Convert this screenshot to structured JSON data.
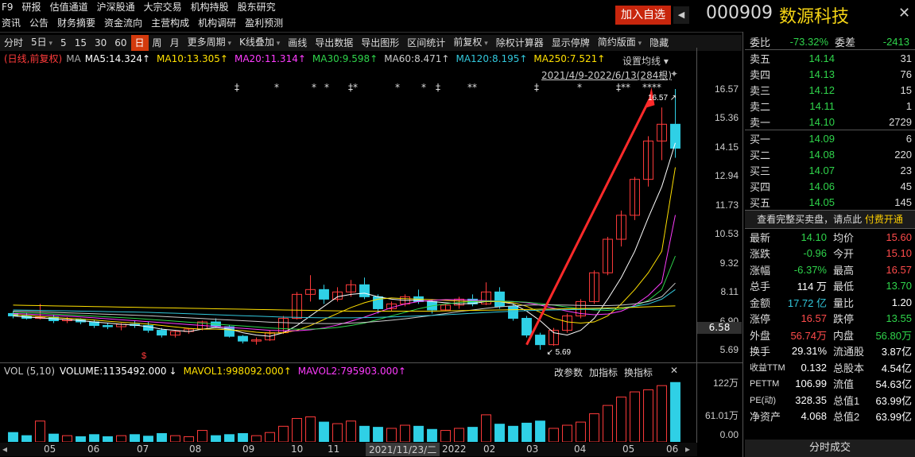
{
  "nav": {
    "row1": [
      "F9",
      "研报",
      "估值通道",
      "沪深股通",
      "大宗交易",
      "机构持股",
      "股东研究"
    ],
    "row2": [
      "资讯",
      "公告",
      "财务摘要",
      "资金流向",
      "主营构成",
      "机构调研",
      "盈利预测"
    ]
  },
  "header": {
    "add_fav": "加入自选",
    "code": "000909",
    "name": "数源科技",
    "colors": {
      "accent": "#c8260d",
      "name": "#f5d415"
    }
  },
  "toolbar": {
    "items": [
      {
        "label": "分时"
      },
      {
        "label": "5日",
        "dd": true
      },
      {
        "label": "5"
      },
      {
        "label": "15"
      },
      {
        "label": "30"
      },
      {
        "label": "60"
      },
      {
        "label": "日",
        "sel": true
      },
      {
        "label": "周"
      },
      {
        "label": "月"
      },
      {
        "label": "更多周期",
        "dd": true
      },
      {
        "label": "K线叠加",
        "dd": true
      },
      {
        "label": "画线"
      },
      {
        "label": "导出数据"
      },
      {
        "label": "导出图形"
      },
      {
        "label": "区间统计"
      },
      {
        "label": "前复权",
        "dd": true
      },
      {
        "label": "除权计算器"
      },
      {
        "label": "显示停牌"
      },
      {
        "label": "简约版面",
        "dd": true
      },
      {
        "label": "隐藏"
      }
    ]
  },
  "ma_legend": {
    "prefix": "(日线,前复权)",
    "ma": "MA",
    "items": [
      {
        "label": "MA5:14.324↑",
        "color": "#ffffff"
      },
      {
        "label": "MA10:13.305↑",
        "color": "#ffe000"
      },
      {
        "label": "MA20:11.314↑",
        "color": "#ff3cff"
      },
      {
        "label": "MA30:9.598↑",
        "color": "#2fd44b"
      },
      {
        "label": "MA60:8.471↑",
        "color": "#cccccc"
      },
      {
        "label": "MA120:8.195↑",
        "color": "#32c8dc"
      },
      {
        "label": "MA250:7.521↑",
        "color": "#ffe000"
      }
    ],
    "set_ma": "设置均线",
    "range": "2021/4/9-2022/6/13(284根)"
  },
  "price_axis": {
    "ticks": [
      "16.57",
      "15.36",
      "14.15",
      "12.94",
      "11.73",
      "10.53",
      "9.32",
      "8.11",
      "6.90",
      "5.69"
    ],
    "current": "6.58"
  },
  "annotations": {
    "high": "16.57",
    "low": "5.69",
    "div_marker": "$"
  },
  "chart_data": {
    "type": "candlestick",
    "x_ticks": [
      "05",
      "06",
      "07",
      "08",
      "09",
      "10",
      "11",
      "2021/11/23/二",
      "2022",
      "02",
      "03",
      "04",
      "05",
      "06"
    ],
    "ylim": [
      5.69,
      16.57
    ],
    "ohlc": [
      [
        7.2,
        7.3,
        7.0,
        7.1
      ],
      [
        7.1,
        7.25,
        6.95,
        7.0
      ],
      [
        7.0,
        7.6,
        6.95,
        7.05
      ],
      [
        7.05,
        7.15,
        6.8,
        6.9
      ],
      [
        6.9,
        7.05,
        6.8,
        6.95
      ],
      [
        6.95,
        7.0,
        6.75,
        6.85
      ],
      [
        6.85,
        6.95,
        6.6,
        6.7
      ],
      [
        6.7,
        6.8,
        6.55,
        6.65
      ],
      [
        6.65,
        6.8,
        6.5,
        6.75
      ],
      [
        6.75,
        6.9,
        6.6,
        6.7
      ],
      [
        6.7,
        6.85,
        6.4,
        6.5
      ],
      [
        6.5,
        6.6,
        6.2,
        6.3
      ],
      [
        6.3,
        6.5,
        6.2,
        6.45
      ],
      [
        6.45,
        6.6,
        6.35,
        6.55
      ],
      [
        6.55,
        6.9,
        6.5,
        6.85
      ],
      [
        6.85,
        7.0,
        6.6,
        6.65
      ],
      [
        6.65,
        6.7,
        6.2,
        6.25
      ],
      [
        6.25,
        6.3,
        5.95,
        6.05
      ],
      [
        6.05,
        6.2,
        5.9,
        6.1
      ],
      [
        6.1,
        6.5,
        6.05,
        6.4
      ],
      [
        6.4,
        7.1,
        6.35,
        7.0
      ],
      [
        7.0,
        8.1,
        6.95,
        8.0
      ],
      [
        8.0,
        8.8,
        7.7,
        8.2
      ],
      [
        8.2,
        8.4,
        7.6,
        7.8
      ],
      [
        7.8,
        8.3,
        7.7,
        8.1
      ],
      [
        8.1,
        8.6,
        7.9,
        8.4
      ],
      [
        8.4,
        8.7,
        7.8,
        7.9
      ],
      [
        7.9,
        8.0,
        7.2,
        7.4
      ],
      [
        7.4,
        7.7,
        7.3,
        7.6
      ],
      [
        7.6,
        8.0,
        7.5,
        7.9
      ],
      [
        7.9,
        8.2,
        7.6,
        7.7
      ],
      [
        7.7,
        7.8,
        7.2,
        7.35
      ],
      [
        7.35,
        7.6,
        7.3,
        7.55
      ],
      [
        7.55,
        7.9,
        7.4,
        7.8
      ],
      [
        7.8,
        8.0,
        7.5,
        7.6
      ],
      [
        7.6,
        8.5,
        7.55,
        8.1
      ],
      [
        8.1,
        8.3,
        7.4,
        7.5
      ],
      [
        7.5,
        7.6,
        6.9,
        7.0
      ],
      [
        7.0,
        7.1,
        6.2,
        6.3
      ],
      [
        6.3,
        6.4,
        5.69,
        5.9
      ],
      [
        5.9,
        6.6,
        5.85,
        6.5
      ],
      [
        6.5,
        7.2,
        6.4,
        7.1
      ],
      [
        7.1,
        7.8,
        7.0,
        7.7
      ],
      [
        7.7,
        9.0,
        7.6,
        8.9
      ],
      [
        8.9,
        10.4,
        8.8,
        10.3
      ],
      [
        10.3,
        11.5,
        10.0,
        11.3
      ],
      [
        11.3,
        12.9,
        11.1,
        12.8
      ],
      [
        12.8,
        14.6,
        12.5,
        14.4
      ],
      [
        14.4,
        15.8,
        13.6,
        15.1
      ],
      [
        15.1,
        16.57,
        13.7,
        14.1
      ]
    ],
    "ma_series": [
      {
        "name": "MA5",
        "values": [
          7.1,
          7.05,
          7.02,
          6.98,
          6.95,
          6.9,
          6.85,
          6.8,
          6.75,
          6.72,
          6.65,
          6.55,
          6.5,
          6.45,
          6.55,
          6.62,
          6.55,
          6.4,
          6.3,
          6.25,
          6.4,
          6.7,
          7.1,
          7.5,
          7.9,
          8.0,
          8.05,
          7.9,
          7.8,
          7.75,
          7.75,
          7.7,
          7.65,
          7.6,
          7.62,
          7.7,
          7.7,
          7.6,
          7.3,
          6.9,
          6.4,
          6.3,
          6.5,
          7.0,
          7.8,
          8.7,
          9.8,
          11.2,
          12.5,
          14.32
        ]
      },
      {
        "name": "MA10",
        "values": [
          7.15,
          7.12,
          7.08,
          7.04,
          7.0,
          6.97,
          6.93,
          6.88,
          6.84,
          6.8,
          6.76,
          6.7,
          6.64,
          6.58,
          6.55,
          6.55,
          6.52,
          6.48,
          6.42,
          6.38,
          6.4,
          6.5,
          6.7,
          6.95,
          7.2,
          7.45,
          7.65,
          7.8,
          7.85,
          7.82,
          7.8,
          7.78,
          7.75,
          7.72,
          7.7,
          7.7,
          7.7,
          7.65,
          7.5,
          7.25,
          7.0,
          6.85,
          6.8,
          6.85,
          7.1,
          7.6,
          8.2,
          8.9,
          9.8,
          13.3
        ]
      },
      {
        "name": "MA20",
        "values": [
          7.2,
          7.18,
          7.15,
          7.12,
          7.09,
          7.06,
          7.02,
          6.98,
          6.94,
          6.9,
          6.86,
          6.82,
          6.78,
          6.74,
          6.7,
          6.66,
          6.62,
          6.58,
          6.54,
          6.5,
          6.48,
          6.48,
          6.52,
          6.6,
          6.72,
          6.88,
          7.05,
          7.25,
          7.45,
          7.6,
          7.7,
          7.75,
          7.78,
          7.78,
          7.76,
          7.74,
          7.72,
          7.7,
          7.65,
          7.55,
          7.42,
          7.3,
          7.2,
          7.15,
          7.18,
          7.3,
          7.55,
          7.95,
          8.5,
          11.31
        ]
      },
      {
        "name": "MA30",
        "values": [
          7.25,
          7.23,
          7.21,
          7.18,
          7.15,
          7.12,
          7.09,
          7.06,
          7.03,
          7.0,
          6.96,
          6.92,
          6.88,
          6.84,
          6.8,
          6.76,
          6.72,
          6.68,
          6.64,
          6.6,
          6.57,
          6.55,
          6.55,
          6.57,
          6.62,
          6.7,
          6.8,
          6.95,
          7.1,
          7.25,
          7.4,
          7.52,
          7.6,
          7.66,
          7.7,
          7.72,
          7.72,
          7.7,
          7.67,
          7.62,
          7.55,
          7.47,
          7.4,
          7.35,
          7.33,
          7.38,
          7.5,
          7.75,
          8.2,
          9.6
        ]
      },
      {
        "name": "MA60",
        "values": [
          7.3,
          7.29,
          7.27,
          7.25,
          7.23,
          7.21,
          7.19,
          7.17,
          7.15,
          7.13,
          7.11,
          7.08,
          7.05,
          7.02,
          6.99,
          6.96,
          6.93,
          6.9,
          6.87,
          6.84,
          6.82,
          6.8,
          6.79,
          6.78,
          6.78,
          6.8,
          6.83,
          6.87,
          6.92,
          6.98,
          7.05,
          7.12,
          7.2,
          7.28,
          7.35,
          7.42,
          7.48,
          7.52,
          7.55,
          7.56,
          7.56,
          7.55,
          7.54,
          7.53,
          7.53,
          7.55,
          7.6,
          7.7,
          7.9,
          8.47
        ]
      },
      {
        "name": "MA120",
        "values": [
          7.35,
          7.34,
          7.33,
          7.32,
          7.31,
          7.3,
          7.29,
          7.28,
          7.27,
          7.26,
          7.25,
          7.23,
          7.21,
          7.19,
          7.17,
          7.15,
          7.13,
          7.11,
          7.09,
          7.07,
          7.05,
          7.04,
          7.03,
          7.02,
          7.02,
          7.02,
          7.03,
          7.04,
          7.06,
          7.08,
          7.1,
          7.12,
          7.15,
          7.18,
          7.21,
          7.24,
          7.27,
          7.3,
          7.32,
          7.34,
          7.35,
          7.36,
          7.37,
          7.38,
          7.4,
          7.44,
          7.5,
          7.6,
          7.8,
          8.2
        ]
      },
      {
        "name": "MA250",
        "values": [
          7.55,
          7.54,
          7.53,
          7.52,
          7.51,
          7.5,
          7.49,
          7.48,
          7.47,
          7.46,
          7.45,
          7.44,
          7.43,
          7.42,
          7.41,
          7.4,
          7.39,
          7.38,
          7.37,
          7.36,
          7.35,
          7.34,
          7.33,
          7.32,
          7.31,
          7.3,
          7.3,
          7.3,
          7.3,
          7.3,
          7.3,
          7.3,
          7.31,
          7.32,
          7.33,
          7.34,
          7.35,
          7.36,
          7.37,
          7.38,
          7.39,
          7.4,
          7.41,
          7.42,
          7.43,
          7.44,
          7.46,
          7.48,
          7.5,
          7.52
        ]
      }
    ],
    "volume": [
      18,
      12,
      40,
      15,
      12,
      10,
      14,
      10,
      12,
      14,
      11,
      16,
      12,
      10,
      22,
      12,
      14,
      16,
      12,
      18,
      30,
      45,
      48,
      38,
      35,
      40,
      30,
      28,
      26,
      32,
      30,
      24,
      22,
      26,
      28,
      52,
      34,
      30,
      36,
      40,
      26,
      32,
      38,
      54,
      70,
      86,
      96,
      100,
      108,
      114
    ]
  },
  "volume_panel": {
    "title": "VOL (5,10)",
    "volume": "VOLUME:1135492.000",
    "volume_arrow": "↓",
    "mavol1": "MAVOL1:998092.000↑",
    "mavol2": "MAVOL2:795903.000↑",
    "buttons": [
      "改参数",
      "加指标",
      "换指标"
    ],
    "axis": [
      "122万",
      "61.01万",
      "0.00"
    ]
  },
  "order_book": {
    "weibi_label": "委比",
    "weibi": "-73.32%",
    "weicha_label": "委差",
    "weicha": "-2413",
    "sells": [
      {
        "label": "卖五",
        "price": "14.14",
        "vol": "31"
      },
      {
        "label": "卖四",
        "price": "14.13",
        "vol": "76"
      },
      {
        "label": "卖三",
        "price": "14.12",
        "vol": "15"
      },
      {
        "label": "卖二",
        "price": "14.11",
        "vol": "1"
      },
      {
        "label": "卖一",
        "price": "14.10",
        "vol": "2729"
      }
    ],
    "buys": [
      {
        "label": "买一",
        "price": "14.09",
        "vol": "6"
      },
      {
        "label": "买二",
        "price": "14.08",
        "vol": "220"
      },
      {
        "label": "买三",
        "price": "14.07",
        "vol": "23"
      },
      {
        "label": "买四",
        "price": "14.06",
        "vol": "45"
      },
      {
        "label": "买五",
        "price": "14.05",
        "vol": "145"
      }
    ],
    "full_book": "查看完整买卖盘，请点此",
    "pay": "付费开通"
  },
  "stats": [
    {
      "k1": "最新",
      "v1": "14.10",
      "c1": "green",
      "k2": "均价",
      "v2": "15.60",
      "c2": "red"
    },
    {
      "k1": "涨跌",
      "v1": "-0.96",
      "c1": "green",
      "k2": "今开",
      "v2": "15.10",
      "c2": "red"
    },
    {
      "k1": "涨幅",
      "v1": "-6.37%",
      "c1": "green",
      "k2": "最高",
      "v2": "16.57",
      "c2": "red"
    },
    {
      "k1": "总手",
      "v1": "114 万",
      "c1": "white",
      "k2": "最低",
      "v2": "13.70",
      "c2": "green"
    },
    {
      "k1": "金额",
      "v1": "17.72 亿",
      "c1": "cyan",
      "k2": "量比",
      "v2": "1.20",
      "c2": "white"
    },
    {
      "k1": "涨停",
      "v1": "16.57",
      "c1": "red",
      "k2": "跌停",
      "v2": "13.55",
      "c2": "green"
    },
    {
      "k1": "外盘",
      "v1": "56.74万",
      "c1": "red",
      "k2": "内盘",
      "v2": "56.80万",
      "c2": "green"
    },
    {
      "k1": "换手",
      "v1": "29.31%",
      "c1": "white",
      "k2": "流通股",
      "v2": "3.87亿",
      "c2": "white"
    },
    {
      "k1": "收益TTM",
      "v1": "0.132",
      "c1": "white",
      "k2": "总股本",
      "v2": "4.54亿",
      "c2": "white"
    },
    {
      "k1": "PETTM",
      "v1": "106.99",
      "c1": "white",
      "k2": "流值",
      "v2": "54.63亿",
      "c2": "white"
    },
    {
      "k1": "PE(动)",
      "v1": "328.35",
      "c1": "white",
      "k2": "总值1",
      "v2": "63.99亿",
      "c2": "white"
    },
    {
      "k1": "净资产",
      "v1": "4.068",
      "c1": "white",
      "k2": "总值2",
      "v2": "63.99亿",
      "c2": "white"
    }
  ],
  "bottom_button": "分时成交",
  "colors": {
    "up": "#ff3b3b",
    "down": "#2fd0e6",
    "ma5": "#ffffff",
    "ma10": "#ffe000",
    "ma20": "#ff3cff",
    "ma30": "#2fd44b",
    "ma60": "#cccccc",
    "ma120": "#32c8dc",
    "ma250": "#ffe000",
    "vol_up": "#ff3b3b",
    "vol_down": "#2fd0e6"
  }
}
